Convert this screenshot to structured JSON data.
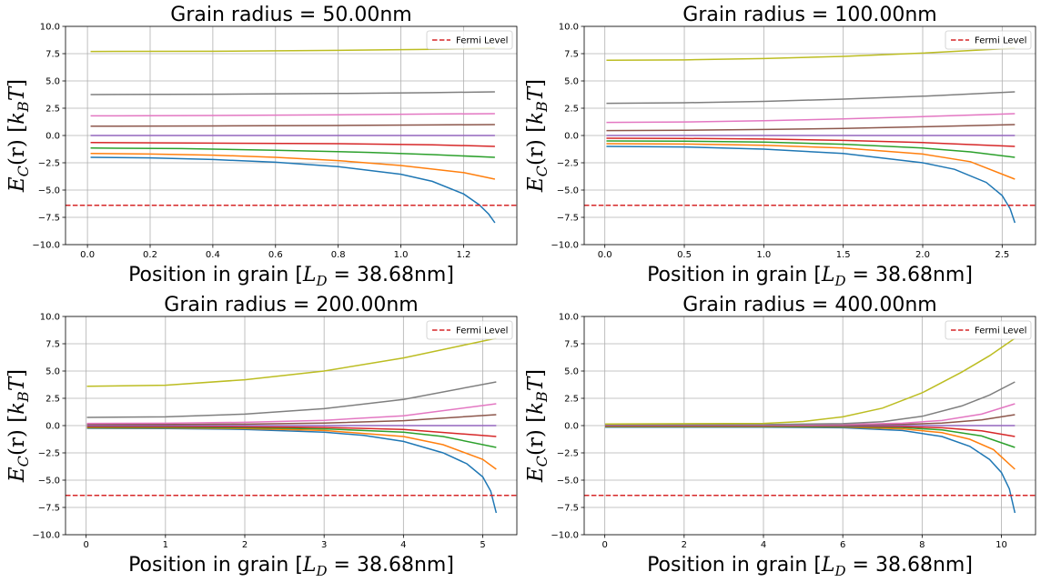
{
  "figure": {
    "fermi_level": -6.4,
    "colors": {
      "fermi": "#d62728",
      "series": [
        "#1f77b4",
        "#ff7f0e",
        "#2ca02c",
        "#d62728",
        "#9467bd",
        "#8c564b",
        "#e377c2",
        "#7f7f7f",
        "#bcbd22"
      ]
    }
  },
  "chart_data": [
    {
      "type": "line",
      "title": "Grain radius = 50.00nm",
      "xlabel": "Position in grain [L_D = 38.68nm]",
      "xlabel_parts": {
        "pre": "Position in grain [",
        "var": "L",
        "sub": "D",
        "post": " = 38.68nm]"
      },
      "ylabel": "E_C(r) [k_B T]",
      "ylabel_parts": {
        "e": "E",
        "e_sub": "C",
        "mid": "(r) [",
        "k": "k",
        "k_sub": "B",
        "t": "T",
        "close": "]"
      },
      "xlim": [
        -0.07,
        1.37
      ],
      "ylim": [
        -10,
        10
      ],
      "x_ticks": [
        "0.0",
        "0.2",
        "0.4",
        "0.6",
        "0.8",
        "1.0",
        "1.2"
      ],
      "x_tick_values": [
        0,
        0.2,
        0.4,
        0.6,
        0.8,
        1.0,
        1.2
      ],
      "y_ticks": [
        "−10.0",
        "−7.5",
        "−5.0",
        "−2.5",
        "0.0",
        "2.5",
        "5.0",
        "7.5",
        "10.0"
      ],
      "y_tick_values": [
        -10,
        -7.5,
        -5,
        -2.5,
        0,
        2.5,
        5,
        7.5,
        10
      ],
      "legend": {
        "label": "Fermi Level",
        "position": "upper right"
      },
      "fermi_level": -6.4,
      "series": [
        {
          "x": [
            0.01,
            0.2,
            0.4,
            0.6,
            0.8,
            1.0,
            1.1,
            1.2,
            1.25,
            1.28,
            1.3
          ],
          "y": [
            -2.0,
            -2.05,
            -2.2,
            -2.45,
            -2.85,
            -3.55,
            -4.2,
            -5.35,
            -6.35,
            -7.2,
            -8.0
          ]
        },
        {
          "x": [
            0.01,
            0.2,
            0.4,
            0.6,
            0.8,
            1.0,
            1.2,
            1.3
          ],
          "y": [
            -1.65,
            -1.7,
            -1.8,
            -2.0,
            -2.3,
            -2.75,
            -3.4,
            -4.0
          ]
        },
        {
          "x": [
            0.01,
            0.3,
            0.6,
            0.9,
            1.1,
            1.3
          ],
          "y": [
            -1.15,
            -1.2,
            -1.35,
            -1.55,
            -1.75,
            -2.0
          ]
        },
        {
          "x": [
            0.01,
            0.4,
            0.8,
            1.1,
            1.3
          ],
          "y": [
            -0.65,
            -0.7,
            -0.75,
            -0.85,
            -1.0
          ]
        },
        {
          "x": [
            0.01,
            1.3
          ],
          "y": [
            0.0,
            0.0
          ]
        },
        {
          "x": [
            0.01,
            0.4,
            0.8,
            1.1,
            1.3
          ],
          "y": [
            0.85,
            0.88,
            0.92,
            0.97,
            1.0
          ]
        },
        {
          "x": [
            0.01,
            0.4,
            0.8,
            1.1,
            1.3
          ],
          "y": [
            1.8,
            1.83,
            1.9,
            1.97,
            2.0
          ]
        },
        {
          "x": [
            0.01,
            0.4,
            0.8,
            1.1,
            1.3
          ],
          "y": [
            3.75,
            3.78,
            3.85,
            3.93,
            4.0
          ]
        },
        {
          "x": [
            0.01,
            0.4,
            0.8,
            1.1,
            1.3
          ],
          "y": [
            7.7,
            7.72,
            7.8,
            7.9,
            8.0
          ]
        }
      ]
    },
    {
      "type": "line",
      "title": "Grain radius = 100.00nm",
      "xlabel": "Position in grain [L_D = 38.68nm]",
      "xlabel_parts": {
        "pre": "Position in grain [",
        "var": "L",
        "sub": "D",
        "post": " = 38.68nm]"
      },
      "ylabel": "E_C(r) [k_B T]",
      "ylabel_parts": {
        "e": "E",
        "e_sub": "C",
        "mid": "(r) [",
        "k": "k",
        "k_sub": "B",
        "t": "T",
        "close": "]"
      },
      "xlim": [
        -0.13,
        2.71
      ],
      "ylim": [
        -10,
        10
      ],
      "x_ticks": [
        "0.0",
        "0.5",
        "1.0",
        "1.5",
        "2.0",
        "2.5"
      ],
      "x_tick_values": [
        0,
        0.5,
        1.0,
        1.5,
        2.0,
        2.5
      ],
      "y_ticks": [
        "−10.0",
        "−7.5",
        "−5.0",
        "−2.5",
        "0.0",
        "2.5",
        "5.0",
        "7.5",
        "10.0"
      ],
      "y_tick_values": [
        -10,
        -7.5,
        -5,
        -2.5,
        0,
        2.5,
        5,
        7.5,
        10
      ],
      "legend": {
        "label": "Fermi Level",
        "position": "upper right"
      },
      "fermi_level": -6.4,
      "series": [
        {
          "x": [
            0.01,
            0.5,
            1.0,
            1.5,
            2.0,
            2.2,
            2.4,
            2.5,
            2.55,
            2.58
          ],
          "y": [
            -1.0,
            -1.05,
            -1.25,
            -1.65,
            -2.5,
            -3.1,
            -4.3,
            -5.5,
            -6.7,
            -8.0
          ]
        },
        {
          "x": [
            0.01,
            0.5,
            1.0,
            1.5,
            2.0,
            2.3,
            2.58
          ],
          "y": [
            -0.75,
            -0.78,
            -0.9,
            -1.15,
            -1.7,
            -2.4,
            -4.0
          ]
        },
        {
          "x": [
            0.01,
            0.5,
            1.0,
            1.5,
            2.0,
            2.3,
            2.58
          ],
          "y": [
            -0.5,
            -0.52,
            -0.6,
            -0.8,
            -1.15,
            -1.5,
            -2.0
          ]
        },
        {
          "x": [
            0.01,
            0.5,
            1.0,
            1.5,
            2.0,
            2.58
          ],
          "y": [
            -0.25,
            -0.27,
            -0.32,
            -0.45,
            -0.65,
            -1.0
          ]
        },
        {
          "x": [
            0.01,
            2.58
          ],
          "y": [
            0.0,
            0.0
          ]
        },
        {
          "x": [
            0.01,
            0.5,
            1.0,
            1.5,
            2.0,
            2.58
          ],
          "y": [
            0.45,
            0.48,
            0.55,
            0.65,
            0.8,
            1.0
          ]
        },
        {
          "x": [
            0.01,
            0.5,
            1.0,
            1.5,
            2.0,
            2.58
          ],
          "y": [
            1.2,
            1.24,
            1.35,
            1.52,
            1.73,
            2.0
          ]
        },
        {
          "x": [
            0.01,
            0.5,
            1.0,
            1.5,
            2.0,
            2.58
          ],
          "y": [
            2.95,
            3.0,
            3.13,
            3.33,
            3.6,
            4.0
          ]
        },
        {
          "x": [
            0.01,
            0.5,
            1.0,
            1.5,
            2.0,
            2.58
          ],
          "y": [
            6.9,
            6.93,
            7.05,
            7.25,
            7.55,
            8.0
          ]
        }
      ]
    },
    {
      "type": "line",
      "title": "Grain radius = 200.00nm",
      "xlabel": "Position in grain [L_D = 38.68nm]",
      "xlabel_parts": {
        "pre": "Position in grain [",
        "var": "L",
        "sub": "D",
        "post": " = 38.68nm]"
      },
      "ylabel": "E_C(r) [k_B T]",
      "ylabel_parts": {
        "e": "E",
        "e_sub": "C",
        "mid": "(r) [",
        "k": "k",
        "k_sub": "B",
        "t": "T",
        "close": "]"
      },
      "xlim": [
        -0.26,
        5.43
      ],
      "ylim": [
        -10,
        10
      ],
      "x_ticks": [
        "0",
        "1",
        "2",
        "3",
        "4",
        "5"
      ],
      "x_tick_values": [
        0,
        1,
        2,
        3,
        4,
        5
      ],
      "y_ticks": [
        "−10.0",
        "−7.5",
        "−5.0",
        "−2.5",
        "0.0",
        "2.5",
        "5.0",
        "7.5",
        "10.0"
      ],
      "y_tick_values": [
        -10,
        -7.5,
        -5,
        -2.5,
        0,
        2.5,
        5,
        7.5,
        10
      ],
      "legend": {
        "label": "Fermi Level",
        "position": "upper right"
      },
      "fermi_level": -6.4,
      "series": [
        {
          "x": [
            0.01,
            1.0,
            2.0,
            3.0,
            3.5,
            4.0,
            4.5,
            4.8,
            5.0,
            5.1,
            5.17
          ],
          "y": [
            -0.25,
            -0.27,
            -0.35,
            -0.6,
            -0.9,
            -1.45,
            -2.5,
            -3.5,
            -4.7,
            -6.0,
            -8.0
          ]
        },
        {
          "x": [
            0.01,
            1.0,
            2.0,
            3.0,
            4.0,
            4.5,
            5.0,
            5.17
          ],
          "y": [
            -0.2,
            -0.21,
            -0.27,
            -0.45,
            -1.0,
            -1.75,
            -3.1,
            -4.0
          ]
        },
        {
          "x": [
            0.01,
            1.0,
            2.0,
            3.0,
            4.0,
            4.5,
            5.17
          ],
          "y": [
            -0.15,
            -0.16,
            -0.2,
            -0.3,
            -0.6,
            -1.0,
            -2.0
          ]
        },
        {
          "x": [
            0.01,
            1.0,
            2.0,
            3.0,
            4.0,
            5.17
          ],
          "y": [
            -0.08,
            -0.08,
            -0.11,
            -0.17,
            -0.35,
            -1.0
          ]
        },
        {
          "x": [
            0.01,
            5.17
          ],
          "y": [
            0.0,
            0.0
          ]
        },
        {
          "x": [
            0.01,
            1.0,
            2.0,
            3.0,
            4.0,
            5.17
          ],
          "y": [
            0.1,
            0.1,
            0.14,
            0.23,
            0.45,
            1.0
          ]
        },
        {
          "x": [
            0.01,
            1.0,
            2.0,
            3.0,
            4.0,
            5.17
          ],
          "y": [
            0.2,
            0.22,
            0.3,
            0.48,
            0.9,
            2.0
          ]
        },
        {
          "x": [
            0.01,
            1.0,
            2.0,
            3.0,
            4.0,
            5.17
          ],
          "y": [
            0.75,
            0.8,
            1.05,
            1.55,
            2.4,
            4.0
          ]
        },
        {
          "x": [
            0.01,
            1.0,
            2.0,
            3.0,
            4.0,
            5.17
          ],
          "y": [
            3.6,
            3.7,
            4.2,
            5.0,
            6.2,
            8.0
          ]
        }
      ]
    },
    {
      "type": "line",
      "title": "Grain radius = 400.00nm",
      "xlabel": "Position in grain [L_D = 38.68nm]",
      "xlabel_parts": {
        "pre": "Position in grain [",
        "var": "L",
        "sub": "D",
        "post": " = 38.68nm]"
      },
      "ylabel": "E_C(r) [k_B T]",
      "ylabel_parts": {
        "e": "E",
        "e_sub": "C",
        "mid": "(r) [",
        "k": "k",
        "k_sub": "B",
        "t": "T",
        "close": "]"
      },
      "xlim": [
        -0.52,
        10.86
      ],
      "ylim": [
        -10,
        10
      ],
      "x_ticks": [
        "0",
        "2",
        "4",
        "6",
        "8",
        "10"
      ],
      "x_tick_values": [
        0,
        2,
        4,
        6,
        8,
        10
      ],
      "y_ticks": [
        "−10.0",
        "−7.5",
        "−5.0",
        "−2.5",
        "0.0",
        "2.5",
        "5.0",
        "7.5",
        "10.0"
      ],
      "y_tick_values": [
        -10,
        -7.5,
        -5,
        -2.5,
        0,
        2.5,
        5,
        7.5,
        10
      ],
      "legend": {
        "label": "Fermi Level",
        "position": "upper right"
      },
      "fermi_level": -6.4,
      "series": [
        {
          "x": [
            0.01,
            4.0,
            6.0,
            7.5,
            8.5,
            9.2,
            9.7,
            10.0,
            10.2,
            10.34
          ],
          "y": [
            -0.15,
            -0.15,
            -0.2,
            -0.45,
            -1.0,
            -1.9,
            -3.1,
            -4.3,
            -5.8,
            -8.0
          ]
        },
        {
          "x": [
            0.01,
            4.0,
            6.0,
            7.5,
            8.5,
            9.2,
            9.8,
            10.34
          ],
          "y": [
            -0.1,
            -0.1,
            -0.13,
            -0.3,
            -0.65,
            -1.25,
            -2.2,
            -4.0
          ]
        },
        {
          "x": [
            0.01,
            4.0,
            6.0,
            7.5,
            8.5,
            9.5,
            10.34
          ],
          "y": [
            -0.07,
            -0.07,
            -0.09,
            -0.18,
            -0.4,
            -0.95,
            -2.0
          ]
        },
        {
          "x": [
            0.01,
            4.0,
            6.0,
            7.5,
            8.5,
            9.5,
            10.34
          ],
          "y": [
            -0.03,
            -0.03,
            -0.04,
            -0.09,
            -0.2,
            -0.48,
            -1.0
          ]
        },
        {
          "x": [
            0.01,
            10.34
          ],
          "y": [
            0.0,
            0.0
          ]
        },
        {
          "x": [
            0.01,
            4.0,
            6.0,
            7.5,
            8.5,
            9.5,
            10.34
          ],
          "y": [
            0.03,
            0.03,
            0.05,
            0.11,
            0.23,
            0.52,
            1.0
          ]
        },
        {
          "x": [
            0.01,
            4.0,
            6.0,
            7.5,
            8.5,
            9.5,
            10.34
          ],
          "y": [
            0.06,
            0.06,
            0.1,
            0.22,
            0.47,
            1.05,
            2.0
          ]
        },
        {
          "x": [
            0.01,
            4.0,
            6.0,
            7.0,
            8.0,
            9.0,
            9.7,
            10.34
          ],
          "y": [
            0.08,
            0.09,
            0.18,
            0.35,
            0.85,
            1.8,
            2.8,
            4.0
          ]
        },
        {
          "x": [
            0.01,
            4.0,
            5.0,
            6.0,
            7.0,
            8.0,
            9.0,
            9.7,
            10.34
          ],
          "y": [
            0.15,
            0.2,
            0.38,
            0.8,
            1.6,
            3.0,
            4.9,
            6.4,
            8.0
          ]
        }
      ]
    }
  ]
}
